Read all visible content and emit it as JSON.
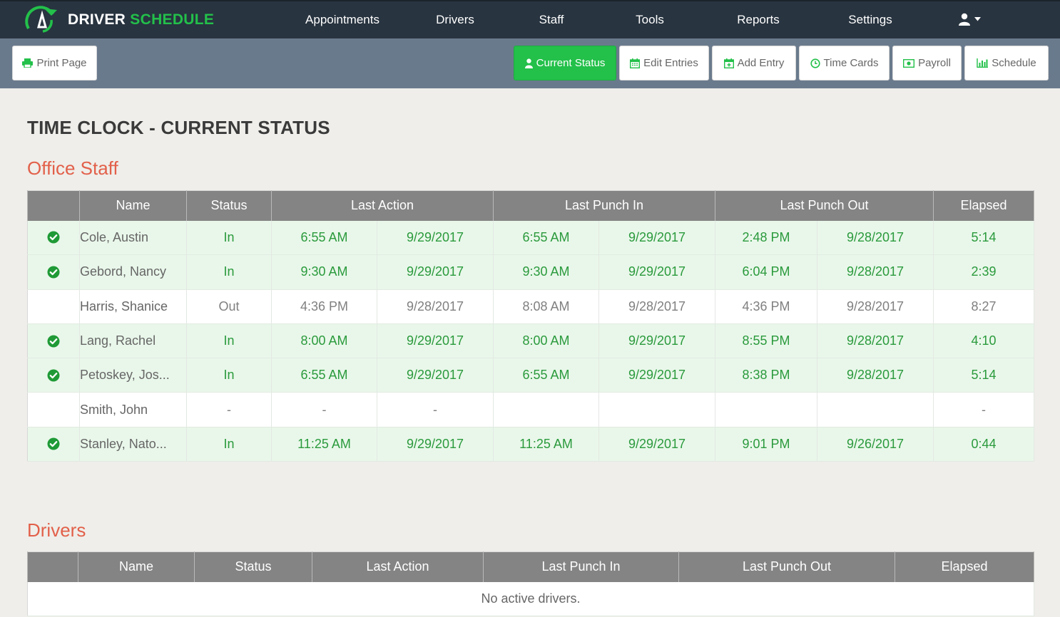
{
  "brand": {
    "part1": "DRIVER",
    "part2": "SCHEDULE",
    "accent": "#23c04a"
  },
  "nav": {
    "items": [
      "Appointments",
      "Drivers",
      "Staff",
      "Tools",
      "Reports",
      "Settings"
    ],
    "user_icon": "user-icon"
  },
  "toolbar": {
    "print": "Print Page",
    "current_status": "Current Status",
    "edit_entries": "Edit Entries",
    "add_entry": "Add Entry",
    "time_cards": "Time Cards",
    "payroll": "Payroll",
    "schedule": "Schedule"
  },
  "page_title": "TIME CLOCK - CURRENT STATUS",
  "office": {
    "title": "Office Staff",
    "headers": [
      "Name",
      "Status",
      "Last Action",
      "Last Punch In",
      "Last Punch Out",
      "Elapsed"
    ],
    "rows": [
      {
        "checked": true,
        "name": "Cole, Austin",
        "status": "In",
        "la_time": "6:55 AM",
        "la_date": "9/29/2017",
        "pi_time": "6:55 AM",
        "pi_date": "9/29/2017",
        "po_time": "2:48 PM",
        "po_date": "9/28/2017",
        "elapsed": "5:14"
      },
      {
        "checked": true,
        "name": "Gebord, Nancy",
        "status": "In",
        "la_time": "9:30 AM",
        "la_date": "9/29/2017",
        "pi_time": "9:30 AM",
        "pi_date": "9/29/2017",
        "po_time": "6:04 PM",
        "po_date": "9/28/2017",
        "elapsed": "2:39"
      },
      {
        "checked": false,
        "name": "Harris, Shanice",
        "status": "Out",
        "la_time": "4:36 PM",
        "la_date": "9/28/2017",
        "pi_time": "8:08 AM",
        "pi_date": "9/28/2017",
        "po_time": "4:36 PM",
        "po_date": "9/28/2017",
        "elapsed": "8:27"
      },
      {
        "checked": true,
        "name": "Lang, Rachel",
        "status": "In",
        "la_time": "8:00 AM",
        "la_date": "9/29/2017",
        "pi_time": "8:00 AM",
        "pi_date": "9/29/2017",
        "po_time": "8:55 PM",
        "po_date": "9/28/2017",
        "elapsed": "4:10"
      },
      {
        "checked": true,
        "name": "Petoskey, Jos...",
        "status": "In",
        "la_time": "6:55 AM",
        "la_date": "9/29/2017",
        "pi_time": "6:55 AM",
        "pi_date": "9/29/2017",
        "po_time": "8:38 PM",
        "po_date": "9/28/2017",
        "elapsed": "5:14"
      },
      {
        "checked": false,
        "name": "Smith, John",
        "status": "-",
        "la_time": "-",
        "la_date": "-",
        "pi_time": "",
        "pi_date": "",
        "po_time": "",
        "po_date": "",
        "elapsed": "-"
      },
      {
        "checked": true,
        "name": "Stanley, Nato...",
        "status": "In",
        "la_time": "11:25 AM",
        "la_date": "9/29/2017",
        "pi_time": "11:25 AM",
        "pi_date": "9/29/2017",
        "po_time": "9:01 PM",
        "po_date": "9/26/2017",
        "elapsed": "0:44"
      }
    ]
  },
  "drivers": {
    "title": "Drivers",
    "headers": [
      "Name",
      "Status",
      "Last Action",
      "Last Punch In",
      "Last Punch Out",
      "Elapsed"
    ],
    "empty": "No active drivers."
  },
  "colors": {
    "in_row": "#e9f7ea",
    "in_text": "#2a9a3c",
    "header": "#848484",
    "section": "#e2604a",
    "nav_bg": "#283440",
    "toolbar_bg": "#6a7a8d"
  }
}
